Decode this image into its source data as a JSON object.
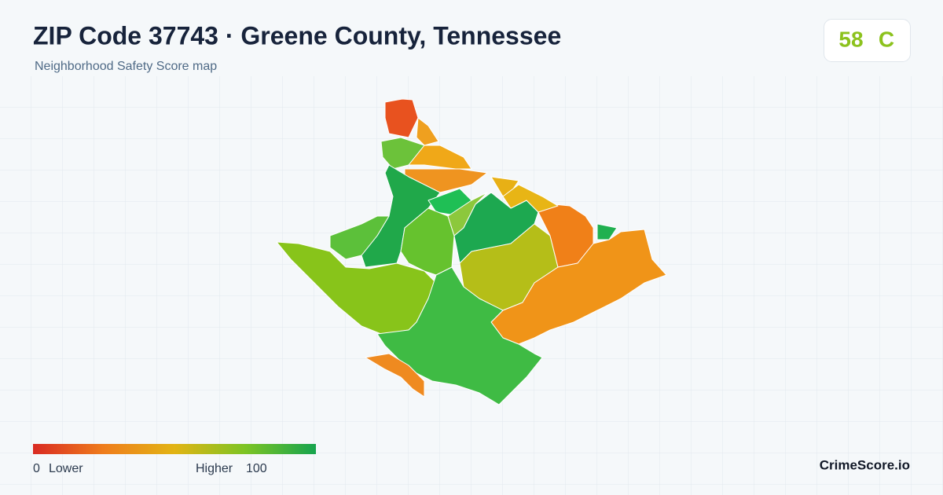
{
  "header": {
    "title": "ZIP Code 37743 · Greene County, Tennessee",
    "subtitle": "Neighborhood Safety Score map"
  },
  "score": {
    "value": 58,
    "grade": "C"
  },
  "legend": {
    "min": 0,
    "min_label": "Lower",
    "max_label": "Higher",
    "max": 100
  },
  "brand": "CrimeScore.io"
}
